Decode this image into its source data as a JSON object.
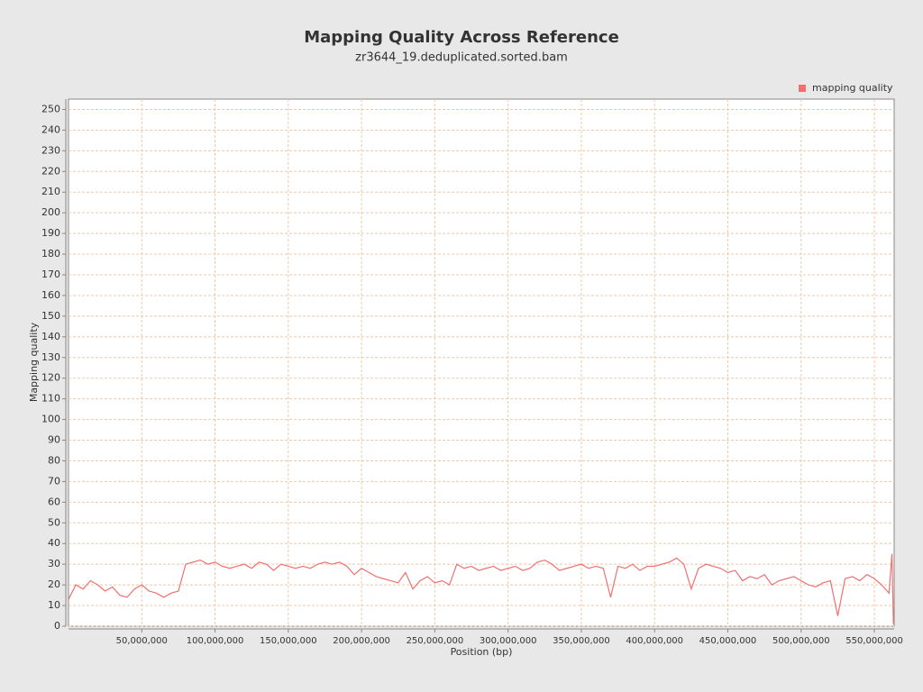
{
  "chart_data": {
    "type": "line",
    "title": "Mapping Quality Across Reference",
    "subtitle": "zr3644_19.deduplicated.sorted.bam",
    "x_label": "Position (bp)",
    "y_label": "Mapping quality",
    "legend_position": "top-right",
    "grid": true,
    "xlim": [
      0,
      563500000
    ],
    "ylim": [
      0,
      255
    ],
    "xticks": [
      {
        "value": 50000000,
        "label": "50,000,000"
      },
      {
        "value": 100000000,
        "label": "100,000,000"
      },
      {
        "value": 150000000,
        "label": "150,000,000"
      },
      {
        "value": 200000000,
        "label": "200,000,000"
      },
      {
        "value": 250000000,
        "label": "250,000,000"
      },
      {
        "value": 300000000,
        "label": "300,000,000"
      },
      {
        "value": 350000000,
        "label": "350,000,000"
      },
      {
        "value": 400000000,
        "label": "400,000,000"
      },
      {
        "value": 450000000,
        "label": "450,000,000"
      },
      {
        "value": 500000000,
        "label": "500,000,000"
      },
      {
        "value": 550000000,
        "label": "550,000,000"
      }
    ],
    "yticks": [
      0,
      10,
      20,
      30,
      40,
      50,
      60,
      70,
      80,
      90,
      100,
      110,
      120,
      130,
      140,
      150,
      160,
      170,
      180,
      190,
      200,
      210,
      220,
      230,
      240,
      250
    ],
    "x": [
      0,
      5000000,
      10000000,
      15000000,
      20000000,
      25000000,
      30000000,
      35000000,
      40000000,
      45000000,
      50000000,
      55000000,
      60000000,
      65000000,
      70000000,
      75000000,
      80000000,
      85000000,
      90000000,
      95000000,
      100000000,
      105000000,
      110000000,
      115000000,
      120000000,
      125000000,
      130000000,
      135000000,
      140000000,
      145000000,
      150000000,
      155000000,
      160000000,
      165000000,
      170000000,
      175000000,
      180000000,
      185000000,
      190000000,
      195000000,
      200000000,
      205000000,
      210000000,
      215000000,
      220000000,
      225000000,
      230000000,
      235000000,
      240000000,
      245000000,
      250000000,
      255000000,
      260000000,
      265000000,
      270000000,
      275000000,
      280000000,
      285000000,
      290000000,
      295000000,
      300000000,
      305000000,
      310000000,
      315000000,
      320000000,
      325000000,
      330000000,
      335000000,
      340000000,
      345000000,
      350000000,
      355000000,
      360000000,
      365000000,
      370000000,
      375000000,
      380000000,
      385000000,
      390000000,
      395000000,
      400000000,
      405000000,
      410000000,
      415000000,
      420000000,
      425000000,
      430000000,
      435000000,
      440000000,
      445000000,
      450000000,
      455000000,
      460000000,
      465000000,
      470000000,
      475000000,
      480000000,
      485000000,
      490000000,
      495000000,
      500000000,
      505000000,
      510000000,
      515000000,
      520000000,
      525000000,
      530000000,
      535000000,
      540000000,
      545000000,
      550000000,
      555000000,
      560000000,
      562000000,
      563000000
    ],
    "series": [
      {
        "name": "mapping quality",
        "color": "#f07070",
        "values": [
          13,
          20,
          18,
          22,
          20,
          17,
          19,
          15,
          14,
          18,
          20,
          17,
          16,
          14,
          16,
          17,
          30,
          31,
          32,
          30,
          31,
          29,
          28,
          29,
          30,
          28,
          31,
          30,
          27,
          30,
          29,
          28,
          29,
          28,
          30,
          31,
          30,
          31,
          29,
          25,
          28,
          26,
          24,
          23,
          22,
          21,
          26,
          18,
          22,
          24,
          21,
          22,
          20,
          30,
          28,
          29,
          27,
          28,
          29,
          27,
          28,
          29,
          27,
          28,
          31,
          32,
          30,
          27,
          28,
          29,
          30,
          28,
          29,
          28,
          14,
          29,
          28,
          30,
          27,
          29,
          29,
          30,
          31,
          33,
          30,
          18,
          28,
          30,
          29,
          28,
          26,
          27,
          22,
          24,
          23,
          25,
          20,
          22,
          23,
          24,
          22,
          20,
          19,
          21,
          22,
          5,
          23,
          24,
          22,
          25,
          23,
          20,
          16,
          35,
          1
        ]
      }
    ]
  }
}
